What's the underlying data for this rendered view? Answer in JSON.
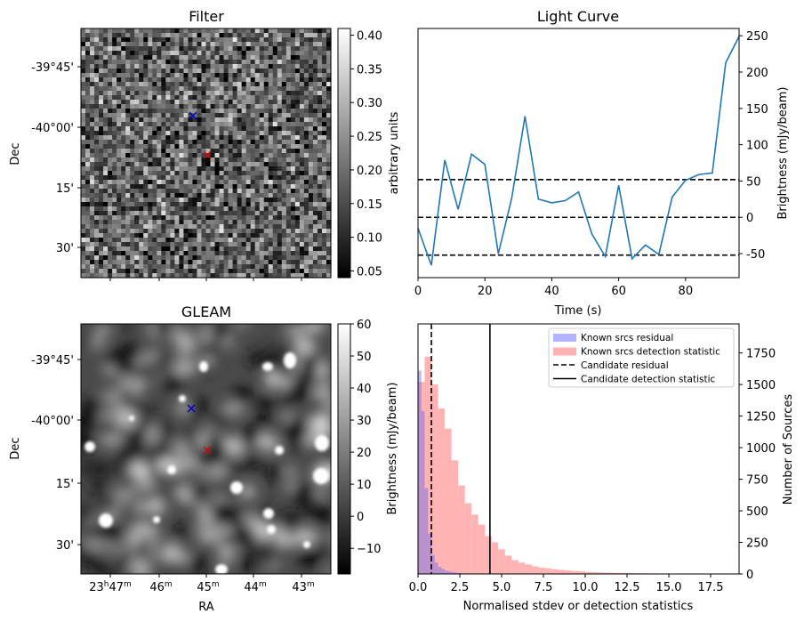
{
  "chart_data": [
    {
      "type": "heatmap",
      "title": "Filter",
      "ylabel": "Dec",
      "y_tick_labels": [
        "-39°45'",
        "-40°00'",
        "15'",
        "30'"
      ],
      "colorbar": {
        "label": "arbitrary units",
        "ticks": [
          0.05,
          0.1,
          0.15,
          0.2,
          0.25,
          0.3,
          0.35,
          0.4
        ],
        "range": [
          0.04,
          0.41
        ]
      },
      "markers": [
        {
          "color": "#0000cc",
          "symbol": "x"
        },
        {
          "color": "#dd0000",
          "symbol": "x"
        }
      ]
    },
    {
      "type": "line",
      "title": "Light Curve",
      "xlabel": "Time (s)",
      "ylabel": "Brightness (mJy/beam)",
      "xlim": [
        0,
        96
      ],
      "ylim": [
        -83,
        260
      ],
      "x_ticks": [
        0,
        20,
        40,
        60,
        80
      ],
      "y_ticks": [
        -50,
        0,
        50,
        100,
        150,
        200,
        250
      ],
      "hlines": [
        -52,
        0,
        52
      ],
      "series_color": "#1f77b4",
      "x": [
        0,
        4,
        8,
        12,
        16,
        20,
        24,
        28,
        32,
        36,
        40,
        44,
        48,
        52,
        56,
        60,
        64,
        68,
        72,
        76,
        80,
        84,
        88,
        92,
        96
      ],
      "y": [
        -15,
        -66,
        79,
        11,
        87,
        73,
        -50,
        26,
        139,
        25,
        20,
        23,
        35,
        -23,
        -54,
        44,
        -57,
        -38,
        -51,
        28,
        51,
        59,
        61,
        213,
        249
      ]
    },
    {
      "type": "heatmap",
      "title": "GLEAM",
      "xlabel": "RA",
      "ylabel": "Dec",
      "y_tick_labels": [
        "-39°45'",
        "-40°00'",
        "15'",
        "30'"
      ],
      "x_tick_labels": [
        {
          "main": "23",
          "h": "h",
          "mid": "47",
          "sup": "m"
        },
        {
          "main": "46",
          "h": "",
          "mid": "",
          "sup": "m"
        },
        {
          "main": "45",
          "h": "",
          "mid": "",
          "sup": "m"
        },
        {
          "main": "44",
          "h": "",
          "mid": "",
          "sup": "m"
        },
        {
          "main": "43",
          "h": "",
          "mid": "",
          "sup": "m"
        }
      ],
      "colorbar": {
        "label": "Brightness (mJy/beam)",
        "ticks": [
          -10,
          0,
          10,
          20,
          30,
          40,
          50,
          60
        ],
        "range": [
          -18,
          60
        ]
      },
      "markers": [
        {
          "color": "#0000cc",
          "symbol": "x"
        },
        {
          "color": "#dd0000",
          "symbol": "x"
        }
      ]
    },
    {
      "type": "bar",
      "subtype": "histogram",
      "xlabel": "Normalised stdev or detection statistics",
      "ylabel": "Number of Sources",
      "xlim": [
        0,
        19.2
      ],
      "ylim": [
        0,
        1980
      ],
      "x_ticks": [
        0.0,
        2.5,
        5.0,
        7.5,
        10.0,
        12.5,
        15.0,
        17.5
      ],
      "y_ticks": [
        0,
        250,
        500,
        750,
        1000,
        1250,
        1500,
        1750
      ],
      "bin_width": 0.4,
      "series": [
        {
          "name": "Known srcs residual",
          "color": "#b3b3ff",
          "values": [
            1610,
            1290,
            680,
            320,
            150,
            90,
            55,
            40,
            25,
            20,
            15,
            10,
            8,
            5,
            4,
            3,
            2,
            2,
            1,
            1,
            1,
            1,
            0,
            0,
            0,
            0,
            0,
            0,
            0,
            0,
            0,
            0,
            0,
            0,
            0,
            0,
            0,
            0,
            0,
            0,
            0,
            0,
            0,
            0,
            0,
            0,
            0,
            0
          ]
        },
        {
          "name": "Known srcs detection statistic",
          "color": "#ffb3b3",
          "values": [
            1520,
            1720,
            1500,
            1310,
            1150,
            900,
            700,
            560,
            470,
            390,
            300,
            250,
            195,
            145,
            110,
            90,
            75,
            60,
            50,
            45,
            38,
            32,
            27,
            23,
            20,
            16,
            14,
            12,
            10,
            9,
            8,
            7,
            6,
            5,
            5,
            4,
            4,
            3,
            3,
            3,
            2,
            2,
            2,
            2,
            1,
            1,
            1,
            1
          ]
        }
      ],
      "vlines": [
        {
          "name": "Candidate residual",
          "x": 0.8,
          "style": "dashed"
        },
        {
          "name": "Candidate detection statistic",
          "x": 4.3,
          "style": "solid"
        }
      ],
      "legend_position": "upper right"
    }
  ]
}
